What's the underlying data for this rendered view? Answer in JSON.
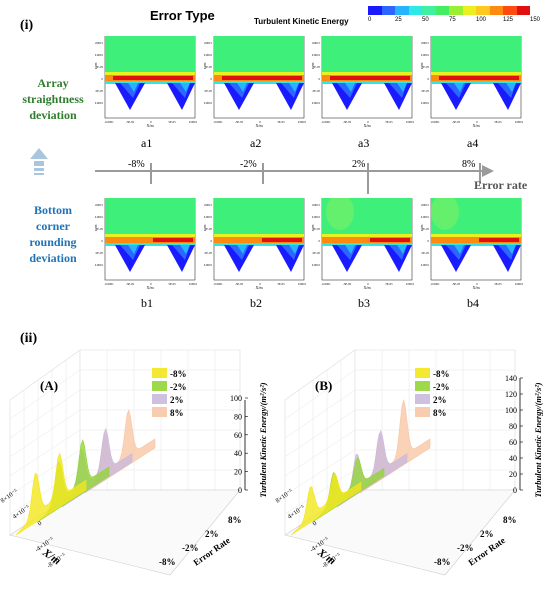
{
  "part_i_label": "(i)",
  "part_ii_label": "(ii)",
  "header": {
    "error_type": "Error Type",
    "tke_title": "Turbulent Kinetic Energy",
    "colorbar_ticks": [
      "0",
      "25",
      "50",
      "75",
      "100",
      "125",
      "150"
    ],
    "colorbar_colors": [
      "#1a1aff",
      "#2a66ff",
      "#27b4ff",
      "#2ee8e8",
      "#3ef0a0",
      "#45ee60",
      "#9af030",
      "#eaf020",
      "#ffc820",
      "#ff8a10",
      "#ff4a10",
      "#e01010"
    ]
  },
  "row_labels": {
    "a": [
      "Array",
      "straightness",
      "deviation"
    ],
    "b": [
      "Bottom",
      "corner",
      "rounding",
      "deviation"
    ]
  },
  "panel_labels_a": [
    "a1",
    "a2",
    "a3",
    "a4"
  ],
  "panel_labels_b": [
    "b1",
    "b2",
    "b3",
    "b4"
  ],
  "panel_axis": {
    "xlabel": "X/m",
    "ylabel": "Y/m",
    "y_ticks": [
      "0.00015",
      "0.0001",
      "5E-05",
      "0",
      "-5E-05",
      "-0.0001"
    ],
    "x_ticks": [
      "-0.0001",
      "-5E-05",
      "0",
      "5E-05",
      "0.0001"
    ]
  },
  "error_axis": {
    "title": "Error rate",
    "ticks": [
      "-8%",
      "-2%",
      "2%",
      "8%"
    ]
  },
  "chart_A": {
    "label": "(A)",
    "legend": [
      "-8%",
      "-2%",
      "2%",
      "8%"
    ],
    "z_ticks": [
      "0",
      "20",
      "40",
      "60",
      "80",
      "100"
    ],
    "z_label": "Turbulent Kinetic Energy/(m²/s²)",
    "x_label": "X/m",
    "x_ticks": [
      "8×10⁻⁵",
      "4×10⁻⁵",
      "0",
      "-4×10⁻⁵",
      "-8×10⁻⁵"
    ],
    "rate_label": "Error Rate",
    "rate_ticks": [
      "8%",
      "2%",
      "-2%",
      "-8%"
    ]
  },
  "chart_B": {
    "label": "(B)",
    "legend": [
      "-8%",
      "-2%",
      "2%",
      "8%"
    ],
    "z_ticks": [
      "0",
      "20",
      "40",
      "60",
      "80",
      "100",
      "120",
      "140"
    ],
    "z_label": "Turbulent Kinetic Energy/(m²/s²)",
    "x_label": "X/m",
    "x_ticks": [
      "8×10⁻⁵",
      "4×10⁻⁵",
      "0",
      "-4×10⁻⁵",
      "-8×10⁻⁵"
    ],
    "rate_label": "Error Rate",
    "rate_ticks": [
      "8%",
      "2%",
      "-2%",
      "-8%"
    ]
  },
  "series_colors": {
    "s1": "#f2e61c",
    "s2": "#93d43a",
    "s3": "#c9b9dc",
    "s4": "#f7c7a6"
  }
}
